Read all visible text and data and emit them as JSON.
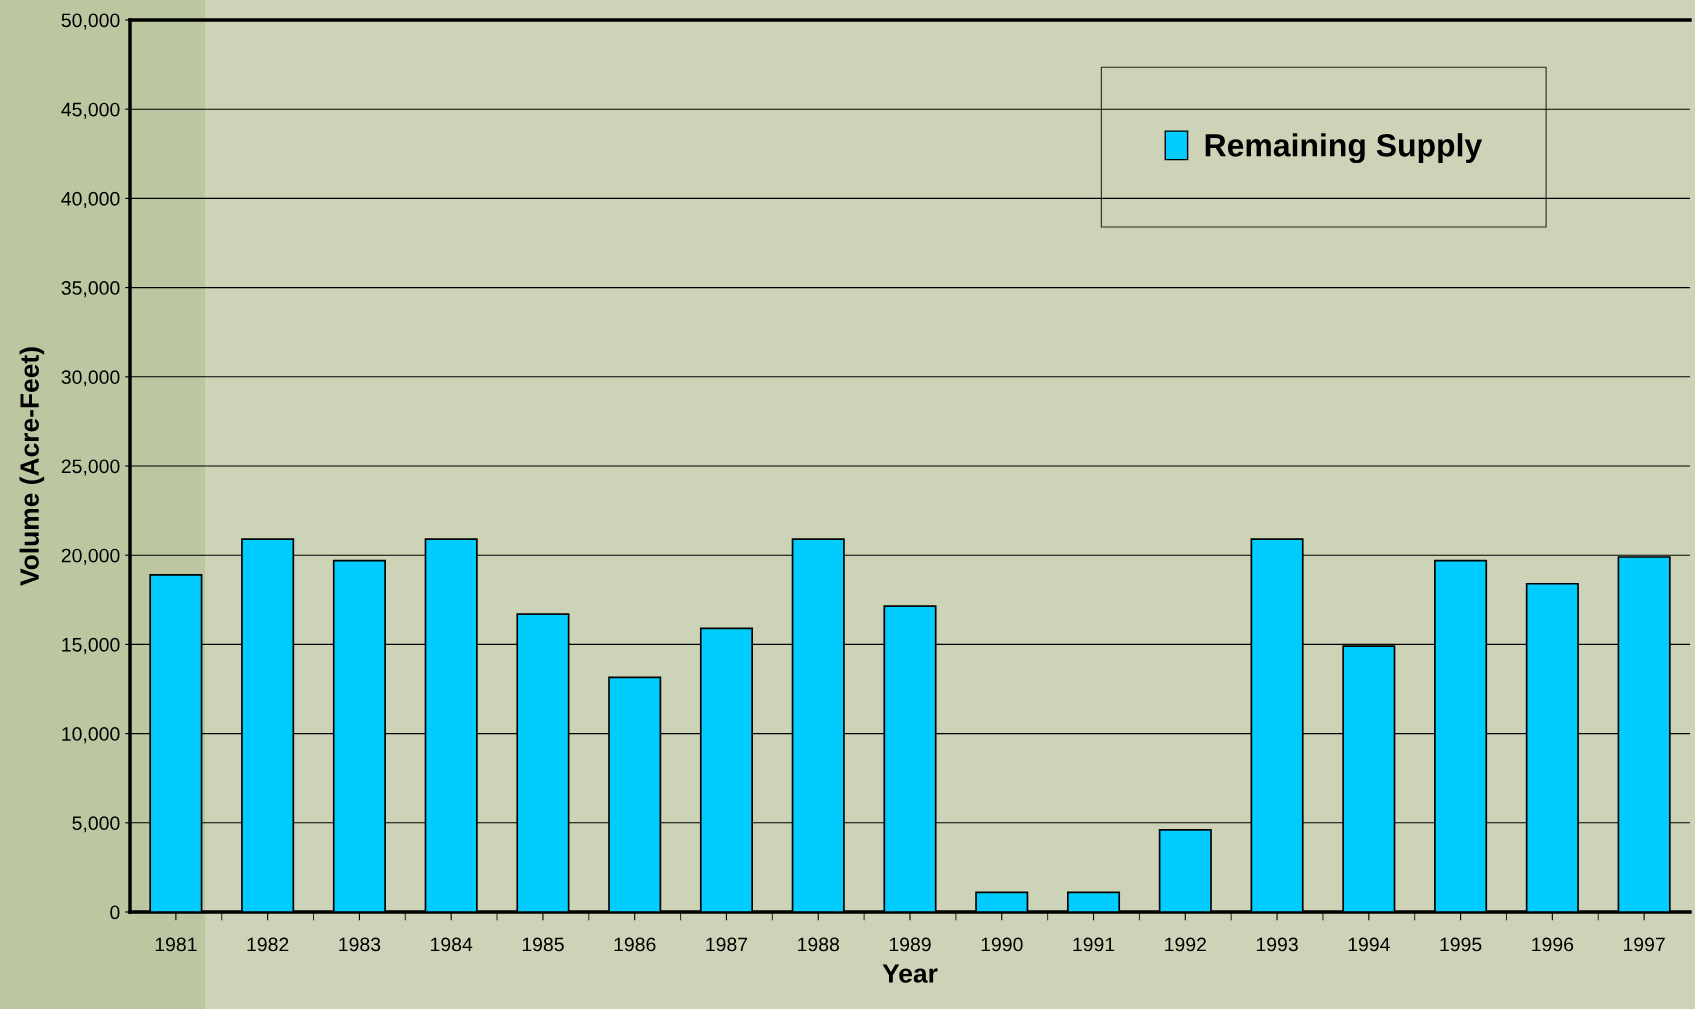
{
  "chart_data": {
    "type": "bar",
    "xlabel": "Year",
    "ylabel": "Volume (Acre-Feet)",
    "categories": [
      "1981",
      "1982",
      "1983",
      "1984",
      "1985",
      "1986",
      "1987",
      "1988",
      "1989",
      "1990",
      "1991",
      "1992",
      "1993",
      "1994",
      "1995",
      "1996",
      "1997"
    ],
    "series": [
      {
        "name": "Remaining Supply",
        "color": "#00ccff",
        "values": [
          18900,
          20900,
          19700,
          20900,
          16700,
          13150,
          15900,
          20900,
          17150,
          1100,
          1100,
          4600,
          20900,
          14900,
          19700,
          18400,
          19900
        ]
      }
    ],
    "ylim": [
      0,
      50000
    ],
    "yticks": [
      {
        "value": 0,
        "label": "0"
      },
      {
        "value": 5000,
        "label": "5,000"
      },
      {
        "value": 10000,
        "label": "10,000"
      },
      {
        "value": 15000,
        "label": "15,000"
      },
      {
        "value": 20000,
        "label": "20,000"
      },
      {
        "value": 25000,
        "label": "25,000"
      },
      {
        "value": 30000,
        "label": "30,000"
      },
      {
        "value": 35000,
        "label": "35,000"
      },
      {
        "value": 40000,
        "label": "40,000"
      },
      {
        "value": 45000,
        "label": "45,000"
      },
      {
        "value": 50000,
        "label": "50,000"
      }
    ],
    "grid": "y",
    "legend": "top right"
  }
}
